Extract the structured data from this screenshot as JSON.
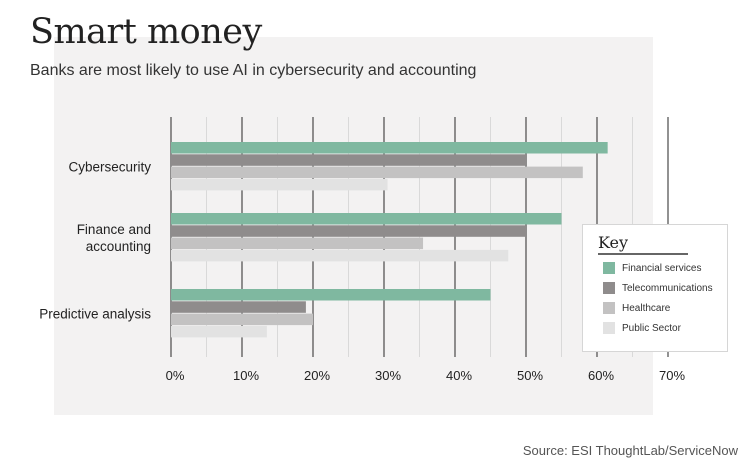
{
  "title": "Smart money",
  "subtitle": "Banks are most likely to use AI in cybersecurity and accounting",
  "source": "Source: ESI ThoughtLab/ServiceNow",
  "legend": {
    "title": "Key",
    "items": [
      {
        "label": "Financial services",
        "color": "#7fb8a0"
      },
      {
        "label": "Telecommunications",
        "color": "#8f8c8c"
      },
      {
        "label": "Healthcare",
        "color": "#c3c2c2"
      },
      {
        "label": "Public Sector",
        "color": "#e2e2e2"
      }
    ]
  },
  "chart_data": {
    "type": "bar",
    "orientation": "horizontal",
    "title": "Smart money",
    "subtitle": "Banks are most likely to use AI in cybersecurity and accounting",
    "categories": [
      {
        "lines": [
          "Cybersecurity"
        ]
      },
      {
        "lines": [
          "Finance and",
          "accounting"
        ]
      },
      {
        "lines": [
          "Predictive analysis"
        ]
      }
    ],
    "series": [
      {
        "name": "Financial services",
        "color": "#7fb8a0",
        "values": [
          61.5,
          55,
          45
        ]
      },
      {
        "name": "Telecommunications",
        "color": "#8f8c8c",
        "values": [
          50,
          50,
          19
        ]
      },
      {
        "name": "Healthcare",
        "color": "#c3c2c2",
        "values": [
          58,
          35.5,
          20
        ]
      },
      {
        "name": "Public Sector",
        "color": "#e2e2e2",
        "values": [
          30.5,
          47.5,
          13.5
        ]
      }
    ],
    "xlim": [
      0,
      70
    ],
    "xticks": [
      0,
      10,
      20,
      30,
      40,
      50,
      60,
      70
    ],
    "xtick_labels": [
      "0%",
      "10%",
      "20%",
      "30%",
      "40%",
      "50%",
      "60%",
      "70%"
    ],
    "grid": true,
    "legend_position": "right"
  }
}
